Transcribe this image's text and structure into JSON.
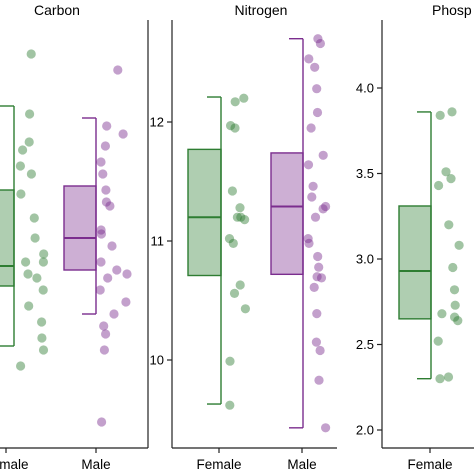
{
  "chart_data": [
    {
      "type": "boxplot",
      "title": "Carbon",
      "categories": [
        "Female",
        "Male"
      ],
      "y_ticks": [],
      "ylim": [
        0,
        1
      ],
      "boxes": [
        {
          "group": "Female",
          "color": "#2e7d32",
          "whisker_low": 0.23,
          "q1": 0.38,
          "median": 0.43,
          "q3": 0.62,
          "whisker_high": 0.83
        },
        {
          "group": "Male",
          "color": "#7b2d8e",
          "whisker_low": 0.31,
          "q1": 0.42,
          "median": 0.5,
          "q3": 0.63,
          "whisker_high": 0.8
        }
      ],
      "points": {
        "Female": [
          0.96,
          0.81,
          0.74,
          0.72,
          0.68,
          0.66,
          0.61,
          0.55,
          0.5,
          0.46,
          0.44,
          0.44,
          0.41,
          0.4,
          0.37,
          0.33,
          0.29,
          0.25,
          0.22,
          0.18
        ],
        "Male": [
          0.92,
          0.78,
          0.76,
          0.73,
          0.69,
          0.66,
          0.62,
          0.59,
          0.58,
          0.52,
          0.51,
          0.48,
          0.44,
          0.42,
          0.41,
          0.4,
          0.37,
          0.34,
          0.31,
          0.28,
          0.26,
          0.22,
          0.04
        ]
      }
    },
    {
      "type": "boxplot",
      "title": "Nitrogen",
      "categories": [
        "Female",
        "Male"
      ],
      "y_ticks": [
        10,
        11,
        12
      ],
      "ylim": [
        9.5,
        12.45
      ],
      "boxes": [
        {
          "group": "Female",
          "color": "#2e7d32",
          "whisker_low": 9.63,
          "q1": 10.71,
          "median": 11.2,
          "q3": 11.77,
          "whisker_high": 12.21
        },
        {
          "group": "Male",
          "color": "#7b2d8e",
          "whisker_low": 9.43,
          "q1": 10.72,
          "median": 11.29,
          "q3": 11.74,
          "whisker_high": 12.7
        }
      ],
      "points": {
        "Female": [
          12.2,
          12.17,
          11.97,
          11.95,
          11.42,
          11.28,
          11.2,
          11.2,
          11.18,
          11.02,
          10.98,
          10.63,
          10.56,
          10.43,
          9.99,
          9.62
        ],
        "Male": [
          12.7,
          12.66,
          12.53,
          12.46,
          12.28,
          12.08,
          11.95,
          11.72,
          11.64,
          11.46,
          11.37,
          11.29,
          11.27,
          11.2,
          11.02,
          10.98,
          10.87,
          10.78,
          10.7,
          10.69,
          10.61,
          10.39,
          10.15,
          10.08,
          9.83,
          9.43
        ]
      }
    },
    {
      "type": "boxplot",
      "title": "Phosp",
      "categories": [
        "Female",
        ""
      ],
      "y_ticks": [
        2.0,
        2.5,
        3.0,
        3.5,
        4.0
      ],
      "ylim": [
        1.96,
        4.22
      ],
      "boxes": [
        {
          "group": "Female",
          "color": "#2e7d32",
          "whisker_low": 2.3,
          "q1": 2.65,
          "median": 2.93,
          "q3": 3.31,
          "whisker_high": 3.86
        }
      ],
      "points": {
        "Female": [
          3.86,
          3.84,
          3.51,
          3.47,
          3.43,
          3.2,
          3.08,
          2.95,
          2.82,
          2.73,
          2.68,
          2.66,
          2.64,
          2.52,
          2.31,
          2.3
        ]
      }
    }
  ]
}
